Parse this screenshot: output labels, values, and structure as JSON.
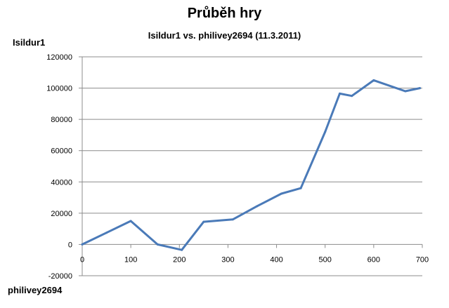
{
  "chart_data": {
    "type": "line",
    "title": "Průběh hry",
    "subtitle": "Isildur1 vs. philivey2694 (11.3.2011)",
    "ylabel": "Isildur1",
    "xlabel": "philivey2694",
    "xlim": [
      0,
      700
    ],
    "ylim": [
      -20000,
      120000
    ],
    "x_ticks": [
      0,
      100,
      200,
      300,
      400,
      500,
      600,
      700
    ],
    "y_ticks": [
      -20000,
      0,
      20000,
      40000,
      60000,
      80000,
      100000,
      120000
    ],
    "grid": "horizontal",
    "legend": "none",
    "line_color": "#4a7ab8",
    "series": [
      {
        "x": [
          0,
          50,
          100,
          155,
          205,
          250,
          310,
          360,
          410,
          450,
          500,
          530,
          555,
          600,
          665,
          695
        ],
        "y": [
          0,
          7500,
          15000,
          0,
          -3500,
          14500,
          16000,
          24500,
          32500,
          36000,
          72000,
          96500,
          95000,
          105000,
          98000,
          100000
        ]
      }
    ]
  }
}
